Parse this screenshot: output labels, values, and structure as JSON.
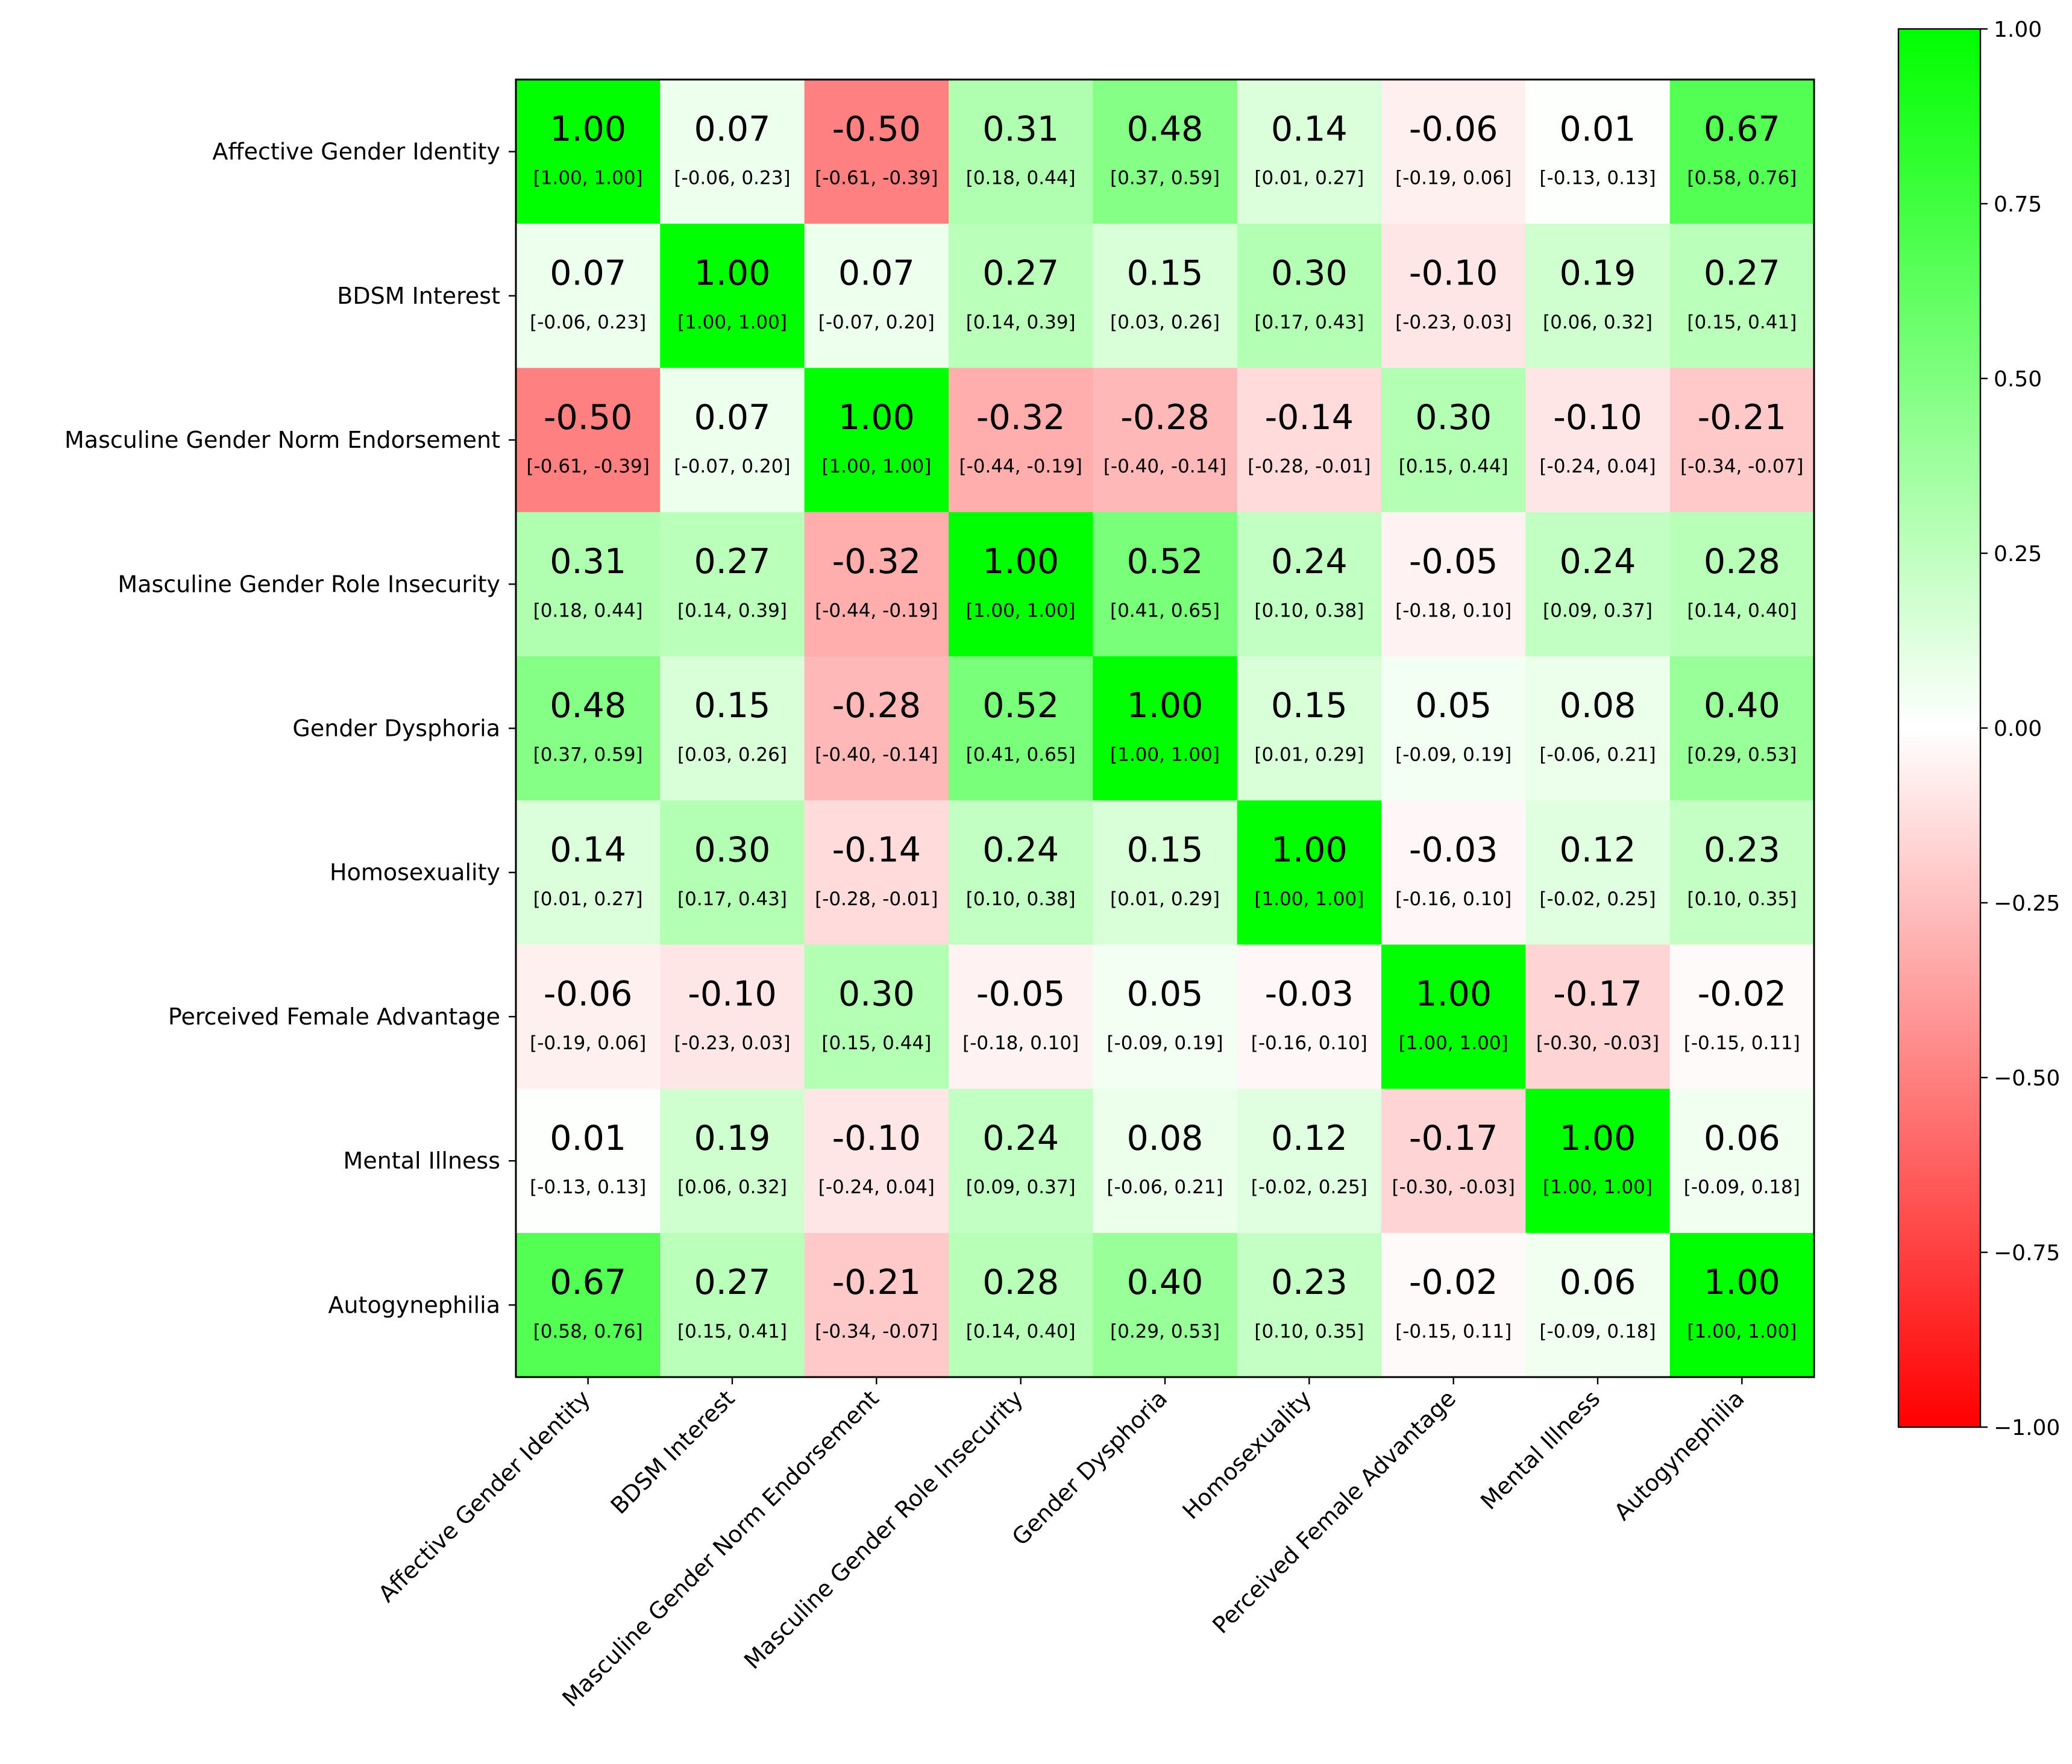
{
  "chart_data": {
    "type": "heatmap",
    "title": "",
    "variables": [
      "Affective Gender Identity",
      "BDSM Interest",
      "Masculine Gender Norm Endorsement",
      "Masculine Gender Role Insecurity",
      "Gender Dysphoria",
      "Homosexuality",
      "Perceived Female Advantage",
      "Mental Illness",
      "Autogynephilia"
    ],
    "values": [
      [
        1.0,
        0.07,
        -0.5,
        0.31,
        0.48,
        0.14,
        -0.06,
        0.01,
        0.67
      ],
      [
        0.07,
        1.0,
        0.07,
        0.27,
        0.15,
        0.3,
        -0.1,
        0.19,
        0.27
      ],
      [
        -0.5,
        0.07,
        1.0,
        -0.32,
        -0.28,
        -0.14,
        0.3,
        -0.1,
        -0.21
      ],
      [
        0.31,
        0.27,
        -0.32,
        1.0,
        0.52,
        0.24,
        -0.05,
        0.24,
        0.28
      ],
      [
        0.48,
        0.15,
        -0.28,
        0.52,
        1.0,
        0.15,
        0.05,
        0.08,
        0.4
      ],
      [
        0.14,
        0.3,
        -0.14,
        0.24,
        0.15,
        1.0,
        -0.03,
        0.12,
        0.23
      ],
      [
        -0.06,
        -0.1,
        0.3,
        -0.05,
        0.05,
        -0.03,
        1.0,
        -0.17,
        -0.02
      ],
      [
        0.01,
        0.19,
        -0.1,
        0.24,
        0.08,
        0.12,
        -0.17,
        1.0,
        0.06
      ],
      [
        0.67,
        0.27,
        -0.21,
        0.28,
        0.4,
        0.23,
        -0.02,
        0.06,
        1.0
      ]
    ],
    "labels": [
      [
        "1.00",
        "0.07",
        "-0.50",
        "0.31",
        "0.48",
        "0.14",
        "-0.06",
        "0.01",
        "0.67"
      ],
      [
        "0.07",
        "1.00",
        "0.07",
        "0.27",
        "0.15",
        "0.30",
        "-0.10",
        "0.19",
        "0.27"
      ],
      [
        "-0.50",
        "0.07",
        "1.00",
        "-0.32",
        "-0.28",
        "-0.14",
        "0.30",
        "-0.10",
        "-0.21"
      ],
      [
        "0.31",
        "0.27",
        "-0.32",
        "1.00",
        "0.52",
        "0.24",
        "-0.05",
        "0.24",
        "0.28"
      ],
      [
        "0.48",
        "0.15",
        "-0.28",
        "0.52",
        "1.00",
        "0.15",
        "0.05",
        "0.08",
        "0.40"
      ],
      [
        "0.14",
        "0.30",
        "-0.14",
        "0.24",
        "0.15",
        "1.00",
        "-0.03",
        "0.12",
        "0.23"
      ],
      [
        "-0.06",
        "-0.10",
        "0.30",
        "-0.05",
        "0.05",
        "-0.03",
        "1.00",
        "-0.17",
        "-0.02"
      ],
      [
        "0.01",
        "0.19",
        "-0.10",
        "0.24",
        "0.08",
        "0.12",
        "-0.17",
        "1.00",
        "0.06"
      ],
      [
        "0.67",
        "0.27",
        "-0.21",
        "0.28",
        "0.40",
        "0.23",
        "-0.02",
        "0.06",
        "1.00"
      ]
    ],
    "ci": [
      [
        "[1.00, 1.00]",
        "[-0.06, 0.23]",
        "[-0.61, -0.39]",
        "[0.18, 0.44]",
        "[0.37, 0.59]",
        "[0.01, 0.27]",
        "[-0.19, 0.06]",
        "[-0.13, 0.13]",
        "[0.58, 0.76]"
      ],
      [
        "[-0.06, 0.23]",
        "[1.00, 1.00]",
        "[-0.07, 0.20]",
        "[0.14, 0.39]",
        "[0.03, 0.26]",
        "[0.17, 0.43]",
        "[-0.23, 0.03]",
        "[0.06, 0.32]",
        "[0.15, 0.41]"
      ],
      [
        "[-0.61, -0.39]",
        "[-0.07, 0.20]",
        "[1.00, 1.00]",
        "[-0.44, -0.19]",
        "[-0.40, -0.14]",
        "[-0.28, -0.01]",
        "[0.15, 0.44]",
        "[-0.24, 0.04]",
        "[-0.34, -0.07]"
      ],
      [
        "[0.18, 0.44]",
        "[0.14, 0.39]",
        "[-0.44, -0.19]",
        "[1.00, 1.00]",
        "[0.41, 0.65]",
        "[0.10, 0.38]",
        "[-0.18, 0.10]",
        "[0.09, 0.37]",
        "[0.14, 0.40]"
      ],
      [
        "[0.37, 0.59]",
        "[0.03, 0.26]",
        "[-0.40, -0.14]",
        "[0.41, 0.65]",
        "[1.00, 1.00]",
        "[0.01, 0.29]",
        "[-0.09, 0.19]",
        "[-0.06, 0.21]",
        "[0.29, 0.53]"
      ],
      [
        "[0.01, 0.27]",
        "[0.17, 0.43]",
        "[-0.28, -0.01]",
        "[0.10, 0.38]",
        "[0.01, 0.29]",
        "[1.00, 1.00]",
        "[-0.16, 0.10]",
        "[-0.02, 0.25]",
        "[0.10, 0.35]"
      ],
      [
        "[-0.19, 0.06]",
        "[-0.23, 0.03]",
        "[0.15, 0.44]",
        "[-0.18, 0.10]",
        "[-0.09, 0.19]",
        "[-0.16, 0.10]",
        "[1.00, 1.00]",
        "[-0.30, -0.03]",
        "[-0.15, 0.11]"
      ],
      [
        "[-0.13, 0.13]",
        "[0.06, 0.32]",
        "[-0.24, 0.04]",
        "[0.09, 0.37]",
        "[-0.06, 0.21]",
        "[-0.02, 0.25]",
        "[-0.30, -0.03]",
        "[1.00, 1.00]",
        "[-0.09, 0.18]"
      ],
      [
        "[0.58, 0.76]",
        "[0.15, 0.41]",
        "[-0.34, -0.07]",
        "[0.14, 0.40]",
        "[0.29, 0.53]",
        "[0.10, 0.35]",
        "[-0.15, 0.11]",
        "[-0.09, 0.18]",
        "[1.00, 1.00]"
      ]
    ],
    "colormap": {
      "min": -1.0,
      "max": 1.0,
      "colors": [
        "#ff0000",
        "#ffffff",
        "#00ff00"
      ]
    },
    "colorbar": {
      "placement": "right",
      "ticks": [
        1.0,
        0.75,
        0.5,
        0.25,
        0.0,
        -0.25,
        -0.5,
        -0.75,
        -1.0
      ],
      "tick_labels": [
        "1.00",
        "0.75",
        "0.50",
        "0.25",
        "0.00",
        "−0.25",
        "−0.50",
        "−0.75",
        "−1.00"
      ]
    }
  }
}
